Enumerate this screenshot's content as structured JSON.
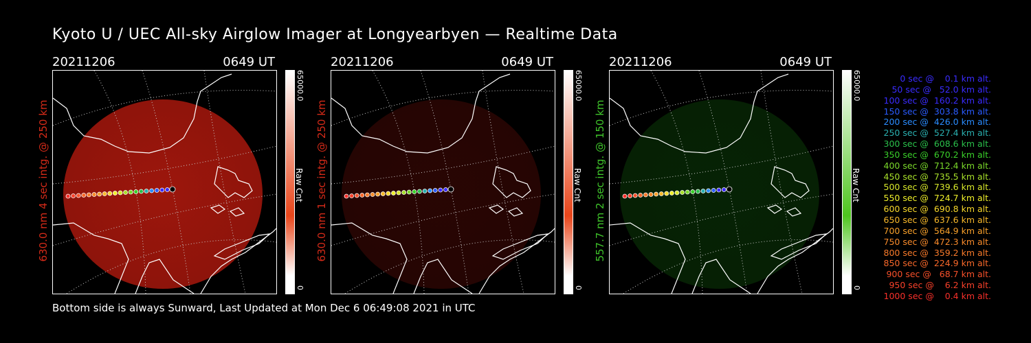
{
  "title": "Kyoto U / UEC All-sky Airglow Imager at Longyearbyen — Realtime Data",
  "footer": "Bottom side is always Sunward, Last Updated at Mon Dec  6 06:49:08 2021 in UTC",
  "panels": [
    {
      "date": "20211206",
      "time": "0649 UT",
      "ylabel": "630.0 nm 4 sec intg. @ 250 km",
      "label_color": "#d42a18",
      "cbar_max": "65000.0",
      "cbar_min": "0",
      "cbar_label": "Raw Cnt",
      "cbar_color": "#e8451a",
      "glow_color": "#b81a0e",
      "glow_level": 0.85
    },
    {
      "date": "20211206",
      "time": "0649 UT",
      "ylabel": "630.0 nm 1 sec intg. @ 250 km",
      "label_color": "#d42a18",
      "cbar_max": "65000.0",
      "cbar_min": "0",
      "cbar_label": "Raw Cnt",
      "cbar_color": "#e8451a",
      "glow_color": "#4a0a06",
      "glow_level": 0.55
    },
    {
      "date": "20211206",
      "time": "0649 UT",
      "ylabel": "557.7 nm 2 sec intg. @ 150 km",
      "label_color": "#3fc42a",
      "cbar_max": "65000.0",
      "cbar_min": "0",
      "cbar_label": "Raw Cnt",
      "cbar_color": "#4ec41e",
      "glow_color": "#0b3a08",
      "glow_level": 0.6
    }
  ],
  "legend": [
    {
      "text": "0 sec @    0.1 km alt.",
      "color": "#3a2cff"
    },
    {
      "text": "50 sec @   52.0 km alt.",
      "color": "#3a2cff"
    },
    {
      "text": "100 sec @  160.2 km alt.",
      "color": "#3a2cff"
    },
    {
      "text": "150 sec @  303.8 km alt.",
      "color": "#2a5cff"
    },
    {
      "text": "200 sec @  426.0 km alt.",
      "color": "#2a8cff"
    },
    {
      "text": "250 sec @  527.4 km alt.",
      "color": "#2ab0b0"
    },
    {
      "text": "300 sec @  608.6 km alt.",
      "color": "#2ac04a"
    },
    {
      "text": "350 sec @  670.2 km alt.",
      "color": "#3ad02a"
    },
    {
      "text": "400 sec @  712.4 km alt.",
      "color": "#7ad82a"
    },
    {
      "text": "450 sec @  735.5 km alt.",
      "color": "#a8e02a"
    },
    {
      "text": "500 sec @  739.6 km alt.",
      "color": "#d8e82a"
    },
    {
      "text": "550 sec @  724.7 km alt.",
      "color": "#f0f02a"
    },
    {
      "text": "600 sec @  690.8 km alt.",
      "color": "#f8d82a"
    },
    {
      "text": "650 sec @  637.6 km alt.",
      "color": "#f8b82a"
    },
    {
      "text": "700 sec @  564.9 km alt.",
      "color": "#f8a02a"
    },
    {
      "text": "750 sec @  472.3 km alt.",
      "color": "#f88a2a"
    },
    {
      "text": "800 sec @  359.2 km alt.",
      "color": "#f87a2a"
    },
    {
      "text": "850 sec @  224.9 km alt.",
      "color": "#f8682a"
    },
    {
      "text": "900 sec @   68.7 km alt.",
      "color": "#f8502a"
    },
    {
      "text": "950 sec @    6.2 km alt.",
      "color": "#f8402a"
    },
    {
      "text": "1000 sec @    0.4 km alt.",
      "color": "#f8302a"
    }
  ]
}
